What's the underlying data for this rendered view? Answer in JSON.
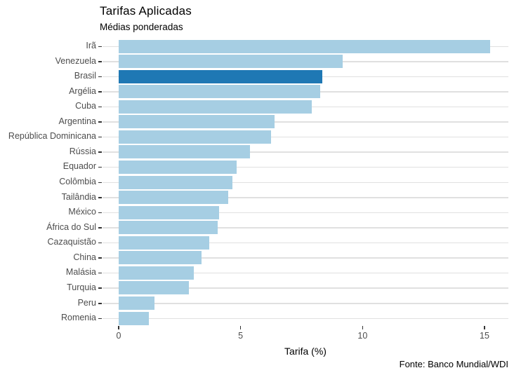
{
  "chart_data": {
    "type": "bar",
    "orientation": "horizontal",
    "title": "Tarifas Aplicadas",
    "subtitle": "Médias ponderadas",
    "xlabel": "Tarifa (%)",
    "caption": "Fonte: Banco Mundial/WDI",
    "categories": [
      "Irã",
      "Venezuela",
      "Brasil",
      "Argélia",
      "Cuba",
      "Argentina",
      "República Dominicana",
      "Rússia",
      "Equador",
      "Colômbia",
      "Tailândia",
      "México",
      "África do Sul",
      "Cazaquistão",
      "China",
      "Malásia",
      "Turquia",
      "Peru",
      "Romenia"
    ],
    "values": [
      15.24,
      9.18,
      8.35,
      8.27,
      7.92,
      6.38,
      6.25,
      5.39,
      4.83,
      4.66,
      4.49,
      4.11,
      4.06,
      3.72,
      3.39,
      3.08,
      2.88,
      1.47,
      1.24
    ],
    "highlight_category": "Brasil",
    "x_ticks": [
      0,
      5,
      10,
      15
    ],
    "xlim": [
      0,
      16
    ],
    "grid": "horizontal-only",
    "legend": "none",
    "colors": {
      "bar": "#a6cee3",
      "highlight": "#1f78b4",
      "gridline": "#e0e0e0",
      "tick": "#333333",
      "axis_text": "#4d4d4d",
      "text": "#000000",
      "background": "#ffffff"
    }
  }
}
